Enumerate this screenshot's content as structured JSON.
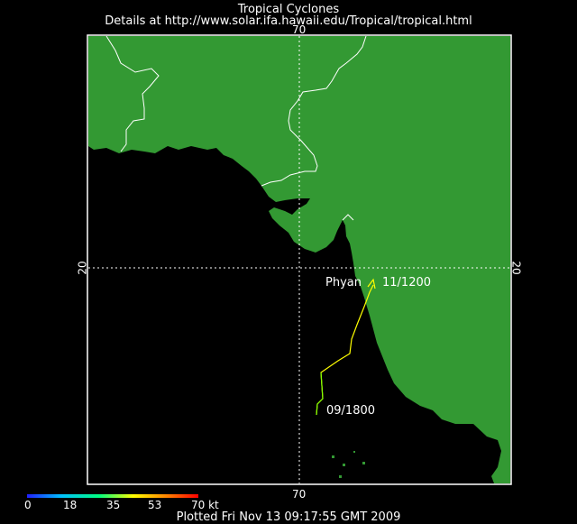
{
  "header": {
    "title": "Tropical Cyclones",
    "subtitle": "Details at http://www.solar.ifa.hawaii.edu/Tropical/tropical.html"
  },
  "grid": {
    "lon_label_top": "70",
    "lon_label_bottom": "70",
    "lat_label_left": "20",
    "lat_label_right": "20"
  },
  "storm": {
    "name": "Phyan",
    "end_label": "11/1200",
    "start_label": "09/1800",
    "track_color": "#ffff00",
    "track_start_color": "#80ff00"
  },
  "colors": {
    "land": "#339933",
    "ocean": "#000000",
    "border": "#ffffff"
  },
  "legend": {
    "ticks": [
      "0",
      "18",
      "35",
      "53",
      "70 kt"
    ],
    "gradient": [
      "#2020ff",
      "#00c0ff",
      "#00ff80",
      "#ffff00",
      "#ff8000",
      "#ff0000"
    ]
  },
  "footer": {
    "text": "Plotted Fri Nov 13 09:17:55 GMT 2009"
  }
}
